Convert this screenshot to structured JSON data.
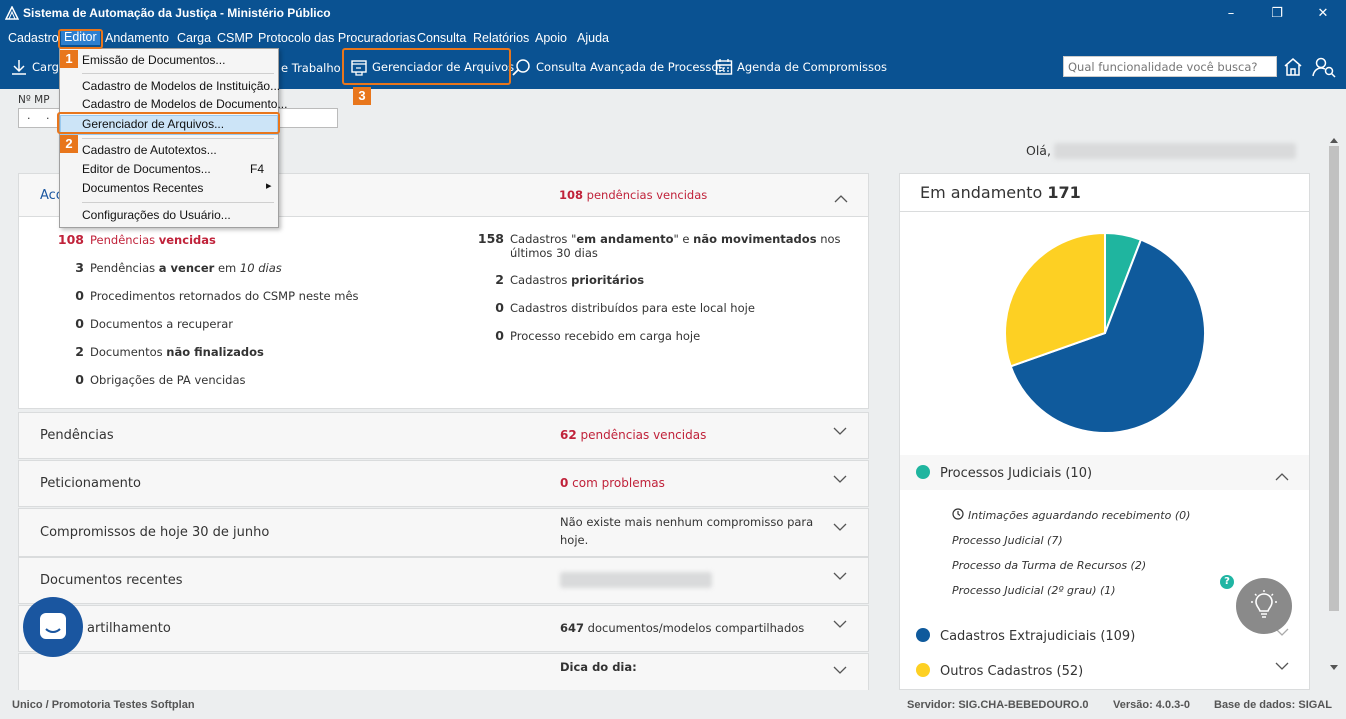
{
  "window": {
    "title": "Sistema de Automação da Justiça - Ministério Público",
    "minimize": "–",
    "maximize": "❐",
    "close": "✕"
  },
  "menubar": {
    "items": [
      "Cadastro",
      "Editor",
      "Andamento",
      "Carga",
      "CSMP",
      "Protocolo das Procuradorias",
      "Consulta",
      "Relatórios",
      "Apoio",
      "Ajuda"
    ]
  },
  "toolbar": {
    "carga": "Carg",
    "trabalho": "e Trabalho",
    "gerenciador": "Gerenciador de Arquivos",
    "consulta": "Consulta Avançada de Processos",
    "agenda": "Agenda de Compromissos",
    "search_placeholder": "Qual funcionalidade você busca?"
  },
  "dropdown": {
    "items": [
      "Emissão de Documentos...",
      "Cadastro de Modelos de Instituição...",
      "Cadastro de Modelos de Documento...",
      "Gerenciador de Arquivos...",
      "Cadastro de Autotextos...",
      "Editor de Documentos...",
      "Documentos Recentes",
      "Configurações do Usuário..."
    ],
    "shortcut_editor": "F4",
    "submenu_arrow": "▸"
  },
  "callouts": [
    "1",
    "2",
    "3"
  ],
  "form": {
    "nmp_label": "Nº MP",
    "nmp_value": ". ."
  },
  "greeting": "Olá,",
  "acompanhamento": {
    "title": "Acompanhamento",
    "right_num": "108",
    "right_text": " pendências vencidas",
    "left": [
      {
        "num": "108",
        "text": "Pendências ",
        "bold": "vencidas",
        "after": ""
      },
      {
        "num": "3",
        "text": "Pendências ",
        "bold": "a vencer",
        "after": " em ",
        "italic": "10 dias"
      },
      {
        "num": "0",
        "text": "Procedimentos retornados do CSMP neste mês",
        "bold": "",
        "after": ""
      },
      {
        "num": "0",
        "text": "Documentos a recuperar",
        "bold": "",
        "after": ""
      },
      {
        "num": "2",
        "text": "Documentos ",
        "bold": "não finalizados",
        "after": ""
      },
      {
        "num": "0",
        "text": "Obrigações de PA vencidas",
        "bold": "",
        "after": ""
      }
    ],
    "right": [
      {
        "num": "158",
        "pre": "Cadastros \"",
        "bold": "em andamento",
        "mid": "\" e ",
        "bold2": "não movimentados",
        "after": " nos",
        "line2": "últimos 30 dias"
      },
      {
        "num": "2",
        "pre": "Cadastros ",
        "bold": "prioritários",
        "mid": "",
        "bold2": "",
        "after": "",
        "line2": ""
      },
      {
        "num": "0",
        "pre": "Cadastros distribuídos para este local hoje",
        "bold": "",
        "mid": "",
        "bold2": "",
        "after": "",
        "line2": ""
      },
      {
        "num": "0",
        "pre": "Processo recebido em carga hoje",
        "bold": "",
        "mid": "",
        "bold2": "",
        "after": "",
        "line2": ""
      }
    ]
  },
  "sections": {
    "pendencias": {
      "title": "Pendências",
      "num": "62",
      "text": " pendências vencidas"
    },
    "peticionamento": {
      "title": "Peticionamento",
      "num": "0",
      "text": " com problemas"
    },
    "compromissos": {
      "title": "Compromissos de hoje 30 de junho",
      "line1": "Não existe mais nenhum compromisso para",
      "line2": "hoje."
    },
    "documentos": {
      "title": "Documentos recentes"
    },
    "compartilhamento": {
      "title": "artilhamento",
      "num": "647",
      "text": " documentos/modelos compartilhados"
    },
    "dica": {
      "title": "Dica do dia:"
    }
  },
  "andamento": {
    "title": "Em andamento ",
    "count": "171",
    "colors": {
      "judiciais": "#1fb59f",
      "extrajudiciais": "#0f5a9c",
      "outros": "#fdd023"
    },
    "chart_data": {
      "type": "pie",
      "categories": [
        "Processos Judiciais",
        "Cadastros Extrajudiciais",
        "Outros Cadastros"
      ],
      "values": [
        10,
        109,
        52
      ]
    },
    "legend": [
      {
        "label": "Processos Judiciais (10)"
      },
      {
        "label": "Cadastros Extrajudiciais (109)"
      },
      {
        "label": "Outros Cadastros (52)"
      }
    ],
    "judiciais_items": [
      "Intimações aguardando recebimento (0)",
      "Processo Judicial (7)",
      "Processo da Turma de Recursos (2)",
      "Processo Judicial (2º grau) (1)"
    ]
  },
  "help_badge": "?",
  "statusbar": {
    "left": "Unico / Promotoria Testes Softplan",
    "servidor": "Servidor: SIG.CHA-BEBEDOURO.0",
    "versao": "Versão: 4.0.3-0",
    "base": "Base de dados: SIGAL"
  }
}
